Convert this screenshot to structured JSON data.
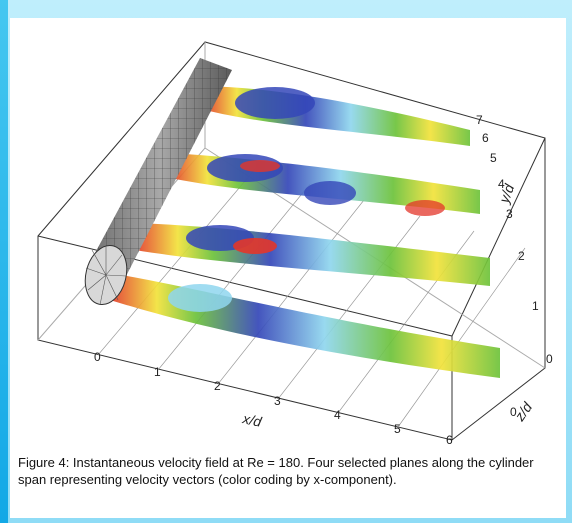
{
  "figure": {
    "x_axis": {
      "label": "x/d",
      "ticks": [
        "0",
        "1",
        "2",
        "3",
        "4",
        "5",
        "6"
      ]
    },
    "y_axis": {
      "label": "y/d",
      "ticks": [
        "1",
        "2",
        "3",
        "4",
        "5",
        "6",
        "7"
      ]
    },
    "z_axis": {
      "label": "z/d",
      "ticks": [
        "0",
        "0"
      ]
    },
    "colors": {
      "negative_velocity": "#3446b8",
      "low_velocity": "#8fd6ee",
      "mid_velocity": "#6cc23a",
      "high_velocity": "#f2e23a",
      "peak_velocity": "#e3362a",
      "cylinder": "#8a8a8a"
    },
    "element_icons": [
      "cylinder-icon",
      "velocity-plane-icon"
    ]
  },
  "caption": "Figure 4: Instantaneous velocity field at Re = 180. Four selected planes along the cylinder span representing velocity vectors (color coding by x-component)."
}
